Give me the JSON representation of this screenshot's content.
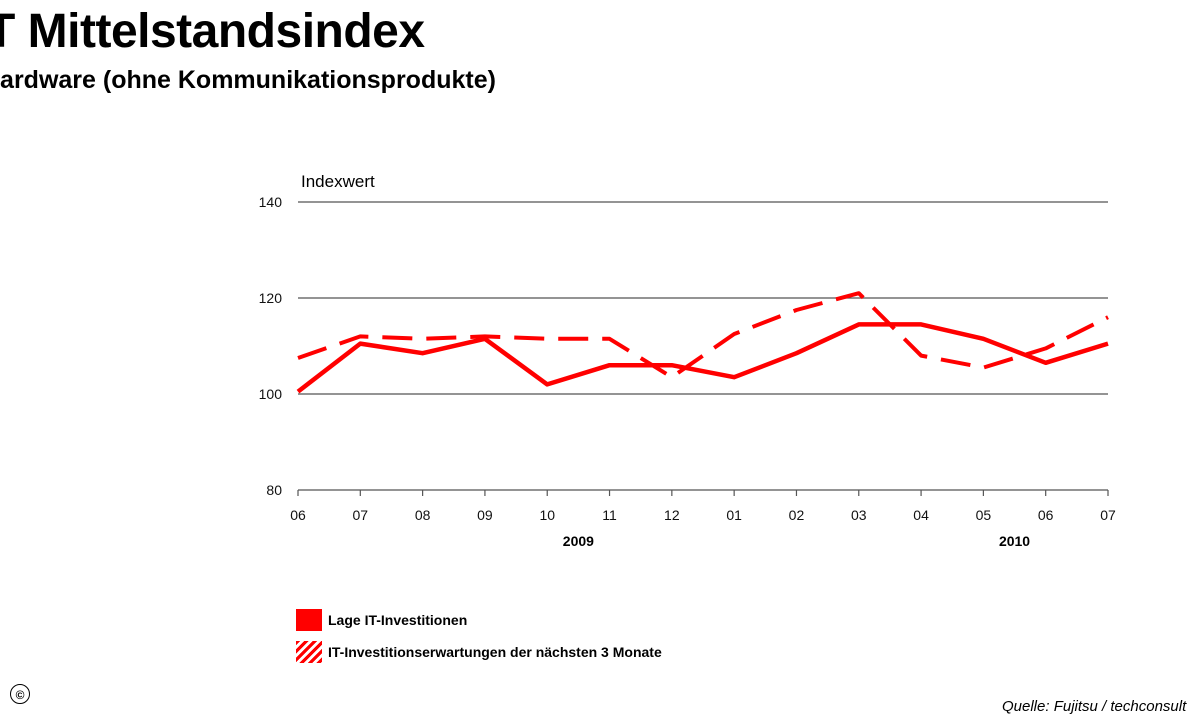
{
  "header": {
    "title": "T Mittelstandsindex",
    "subtitle": "Hardware (ohne Kommunikationsprodukte)"
  },
  "chart_data": {
    "type": "line",
    "title": "T Mittelstandsindex",
    "subtitle": "Hardware (ohne Kommunikationsprodukte)",
    "ylabel": "Indexwert",
    "xlabel": "",
    "ylim": [
      80,
      140
    ],
    "yticks": [
      80,
      100,
      120,
      140
    ],
    "grid": true,
    "categories": [
      "06",
      "07",
      "08",
      "09",
      "10",
      "11",
      "12",
      "01",
      "02",
      "03",
      "04",
      "05",
      "06",
      "07"
    ],
    "year_labels": [
      {
        "label": "2009",
        "category_index": 4.5
      },
      {
        "label": "2010",
        "category_index": 11.5
      }
    ],
    "series": [
      {
        "name": "Lage IT-Investitionen",
        "style": "solid",
        "values": [
          100.5,
          110.5,
          108.5,
          111.5,
          102,
          106,
          106,
          103.5,
          108.5,
          114.5,
          114.5,
          111.5,
          106.5,
          110.5
        ]
      },
      {
        "name": "IT-Investitionserwartungen der nächsten 3 Monate",
        "style": "dashed",
        "values": [
          107.5,
          112,
          111.5,
          112,
          111.5,
          111.5,
          103.5,
          112.5,
          117.5,
          121,
          108,
          105.5,
          109.5,
          116
        ]
      }
    ],
    "colors": {
      "series": "#ff0000",
      "grid": "#555555",
      "axis": "#555555"
    },
    "legend_position": "bottom-left"
  },
  "legend": {
    "items": [
      {
        "label": "Lage IT-Investitionen"
      },
      {
        "label": "IT-Investitionserwartungen der nächsten 3 Monate"
      }
    ]
  },
  "footer": {
    "copyright_symbol": "©",
    "source": "Quelle: Fujitsu / techconsult"
  }
}
